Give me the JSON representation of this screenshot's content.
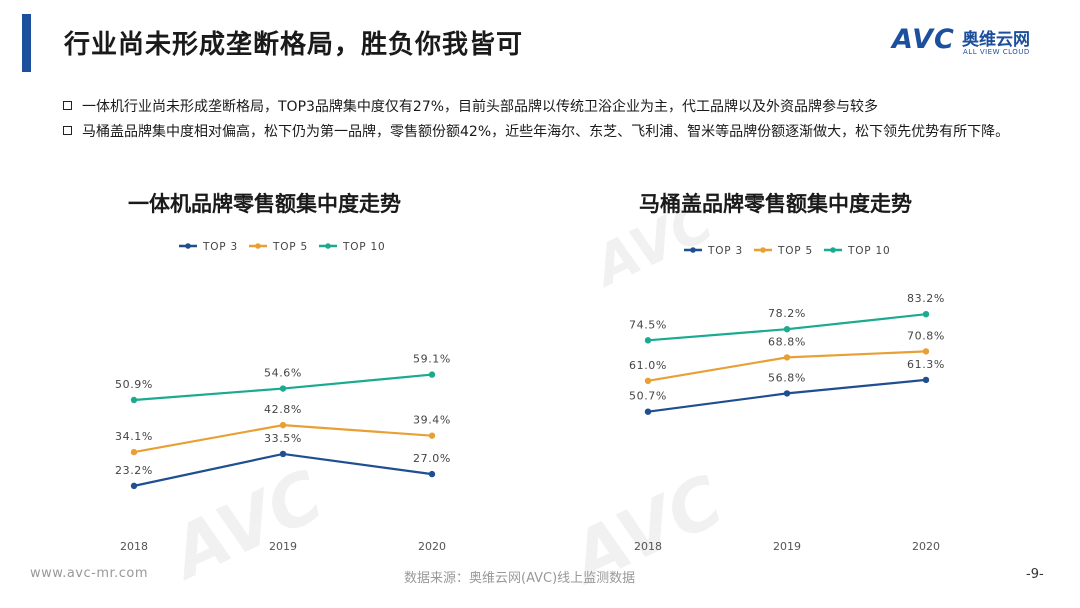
{
  "header": {
    "title": "行业尚未形成垄断格局，胜负你我皆可",
    "logo_avc": "AVC",
    "logo_cn": "奥维云网",
    "logo_en": "ALL VIEW CLOUD"
  },
  "bullets": [
    "一体机行业尚未形成垄断格局，TOP3品牌集中度仅有27%，目前头部品牌以传统卫浴企业为主，代工品牌以及外资品牌参与较多",
    "马桶盖品牌集中度相对偏高，松下仍为第一品牌，零售额份额42%，近些年海尔、东芝、飞利浦、智米等品牌份额逐渐做大，松下领先优势有所下降。"
  ],
  "colors": {
    "top3": "#1f4e91",
    "top5": "#e8a035",
    "top10": "#1aaa8f",
    "title_bar": "#1c4f9c"
  },
  "chart_data": [
    {
      "type": "line",
      "title": "一体机品牌零售额集中度走势",
      "categories": [
        "2018",
        "2019",
        "2020"
      ],
      "series": [
        {
          "name": "TOP 3",
          "values": [
            23.2,
            33.5,
            27.0
          ],
          "labels": [
            "23.2%",
            "33.5%",
            "27.0%"
          ]
        },
        {
          "name": "TOP 5",
          "values": [
            34.1,
            42.8,
            39.4
          ],
          "labels": [
            "34.1%",
            "42.8%",
            "39.4%"
          ]
        },
        {
          "name": "TOP 10",
          "values": [
            50.9,
            54.6,
            59.1
          ],
          "labels": [
            "50.9%",
            "54.6%",
            "59.1%"
          ]
        }
      ],
      "legend": "top",
      "grid": false
    },
    {
      "type": "line",
      "title": "马桶盖品牌零售额集中度走势",
      "categories": [
        "2018",
        "2019",
        "2020"
      ],
      "series": [
        {
          "name": "TOP 3",
          "values": [
            50.7,
            56.8,
            61.3
          ],
          "labels": [
            "50.7%",
            "56.8%",
            "61.3%"
          ]
        },
        {
          "name": "TOP 5",
          "values": [
            61.0,
            68.8,
            70.8
          ],
          "labels": [
            "61.0%",
            "68.8%",
            "70.8%"
          ]
        },
        {
          "name": "TOP 10",
          "values": [
            74.5,
            78.2,
            83.2
          ],
          "labels": [
            "74.5%",
            "78.2%",
            "83.2%"
          ]
        }
      ],
      "legend": "top",
      "grid": false
    }
  ],
  "footer": {
    "url": "www.avc-mr.com",
    "source": "数据来源：奥维云网(AVC)线上监测数据",
    "page": "-9-"
  }
}
